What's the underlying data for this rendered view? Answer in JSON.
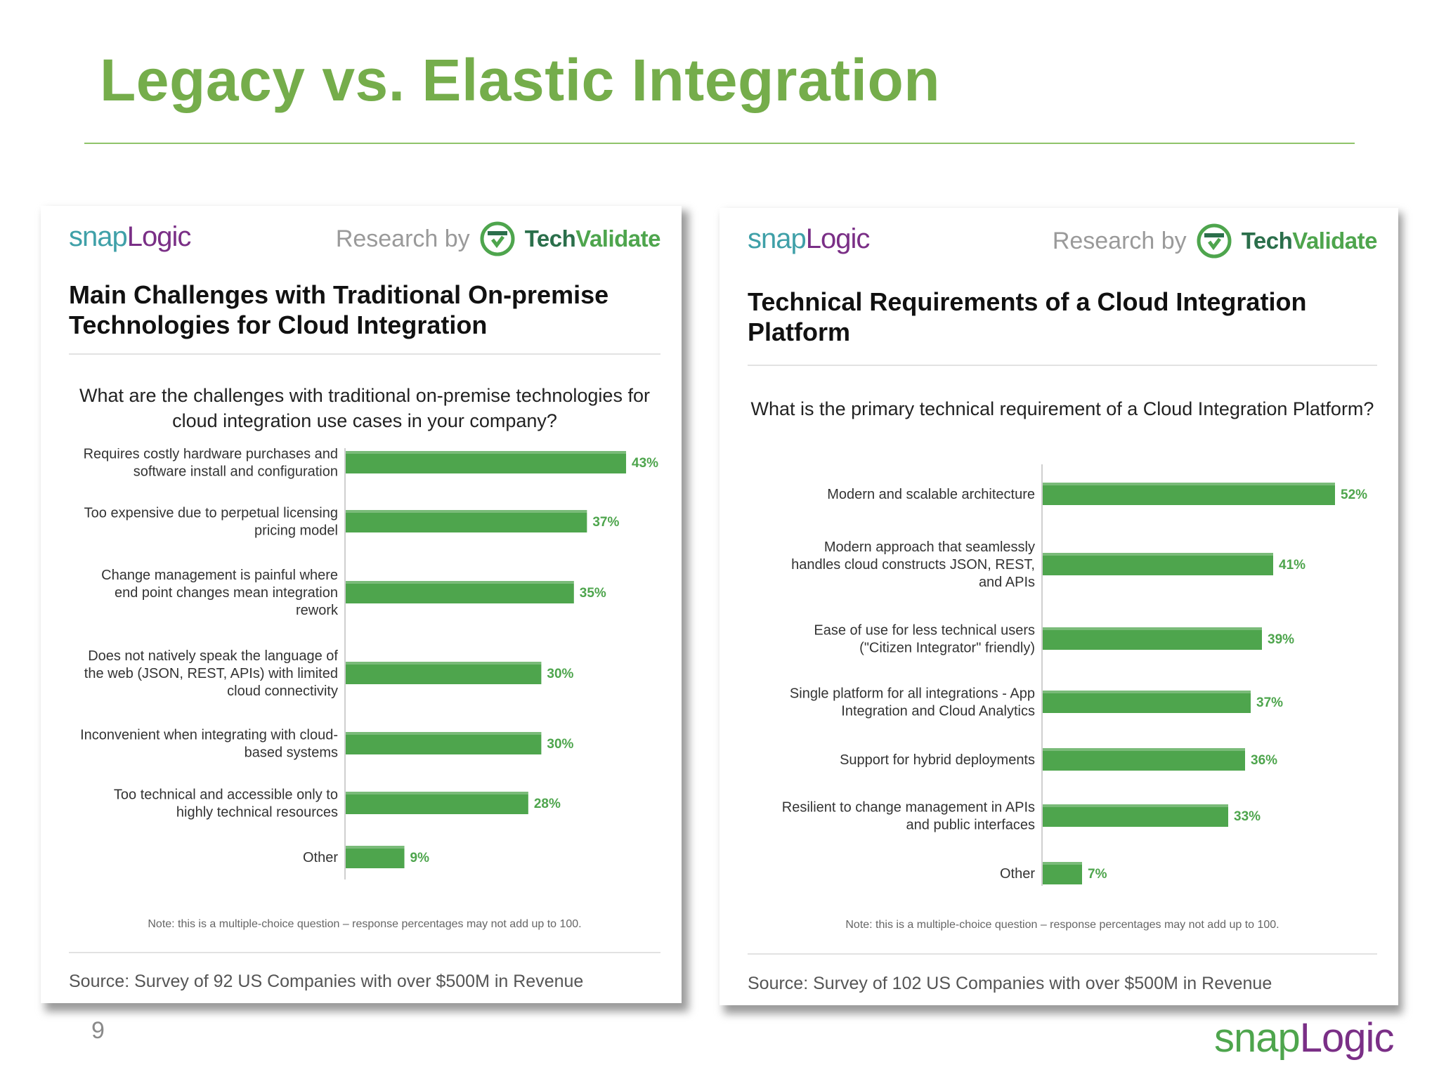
{
  "slide": {
    "title": "Legacy vs. Elastic Integration",
    "page_number": "9",
    "footer_brand": {
      "snap": "snap",
      "logic": "Logic"
    }
  },
  "colors": {
    "title": "#75ad4b",
    "bar": "#4ea54d",
    "value_label": "#4ea54d",
    "snaplogic_teal": "#3fa0a8",
    "snaplogic_purple": "#7a2f86"
  },
  "left_panel": {
    "brand": {
      "snap": "snap",
      "logic": "Logic"
    },
    "research_by": "Research by",
    "techvalidate": {
      "tech": "Tech",
      "validate": "Validate"
    },
    "title": "Main Challenges with Traditional On-premise Technologies for Cloud Integration",
    "question": "What are the challenges with traditional on-premise technologies for cloud integration use cases in your company?",
    "note": "Note: this is a multiple-choice question – response percentages may not add up to 100.",
    "source": "Source: Survey of 92 US Companies with over $500M in Revenue"
  },
  "right_panel": {
    "brand": {
      "snap": "snap",
      "logic": "Logic"
    },
    "research_by": "Research by",
    "techvalidate": {
      "tech": "Tech",
      "validate": "Validate"
    },
    "title": "Technical Requirements of a Cloud Integration Platform",
    "question": "What is the primary technical requirement of a Cloud Integration Platform?",
    "note": "Note: this is a multiple-choice question – response percentages may not add up to 100.",
    "source": "Source: Survey of 102 US Companies with over $500M in Revenue"
  },
  "chart_data": [
    {
      "type": "bar",
      "orientation": "horizontal",
      "title": "Main Challenges with Traditional On-premise Technologies for Cloud Integration",
      "categories": [
        [
          "Requires costly hardware purchases and",
          "software install and configuration"
        ],
        [
          "Too expensive due to perpetual licensing",
          "pricing model"
        ],
        [
          "Change management is painful where",
          "end point changes mean integration",
          "rework"
        ],
        [
          "Does not natively speak the language of",
          "the web (JSON, REST, APIs) with limited",
          "cloud connectivity"
        ],
        [
          "Inconvenient when integrating with cloud-",
          "based systems"
        ],
        [
          "Too technical and accessible only to",
          "highly technical resources"
        ],
        [
          "Other"
        ]
      ],
      "values": [
        43,
        37,
        35,
        30,
        30,
        28,
        9
      ],
      "value_labels": [
        "43%",
        "37%",
        "35%",
        "30%",
        "30%",
        "28%",
        "9%"
      ],
      "unit": "%"
    },
    {
      "type": "bar",
      "orientation": "horizontal",
      "title": "Technical Requirements of a Cloud Integration Platform",
      "categories": [
        [
          "Modern and scalable architecture"
        ],
        [
          "Modern approach that seamlessly",
          "handles cloud constructs JSON, REST,",
          "and APIs"
        ],
        [
          "Ease of use for less technical users",
          "(\"Citizen Integrator\" friendly)"
        ],
        [
          "Single platform for all integrations - App",
          "Integration and Cloud Analytics"
        ],
        [
          "Support for hybrid deployments"
        ],
        [
          "Resilient to change management in APIs",
          "and public interfaces"
        ],
        [
          "Other"
        ]
      ],
      "values": [
        52,
        41,
        39,
        37,
        36,
        33,
        7
      ],
      "value_labels": [
        "52%",
        "41%",
        "39%",
        "37%",
        "36%",
        "33%",
        "7%"
      ],
      "unit": "%"
    }
  ]
}
